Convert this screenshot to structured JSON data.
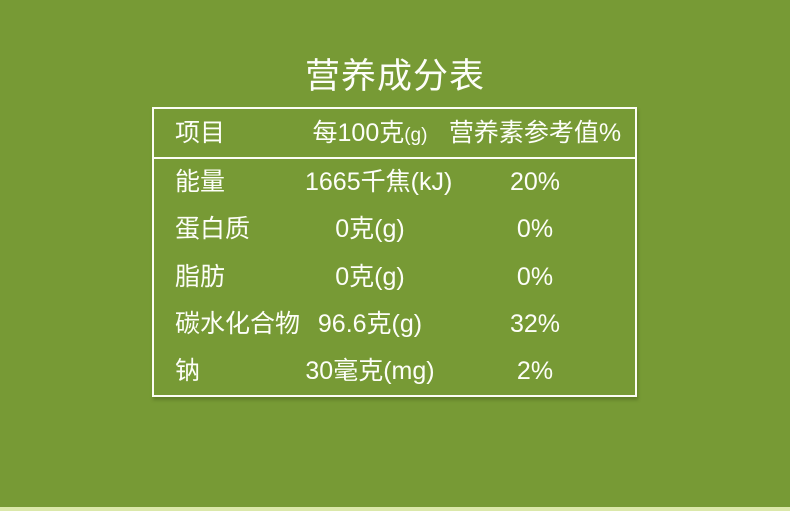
{
  "page": {
    "background_color": "#779a35",
    "text_color": "#fdfef8",
    "border_color": "#fcfdf4",
    "bottom_strip_color": "#dbe8aa"
  },
  "title": "营养成分表",
  "table": {
    "header": {
      "item_label": "项目",
      "per_100g_label": "每100克",
      "per_100g_unit": "(g)",
      "nrv_label": "营养素参考值%"
    },
    "rows": [
      {
        "name": "能量",
        "amount": "1665千焦(kJ)",
        "nrv": "20%"
      },
      {
        "name": "蛋白质",
        "amount": "0克(g)",
        "nrv": "0%"
      },
      {
        "name": "脂肪",
        "amount": "0克(g)",
        "nrv": "0%"
      },
      {
        "name": "碳水化合物",
        "amount": "96.6克(g)",
        "nrv": "32%"
      },
      {
        "name": "钠",
        "amount": "30毫克(mg)",
        "nrv": "2%"
      }
    ]
  }
}
